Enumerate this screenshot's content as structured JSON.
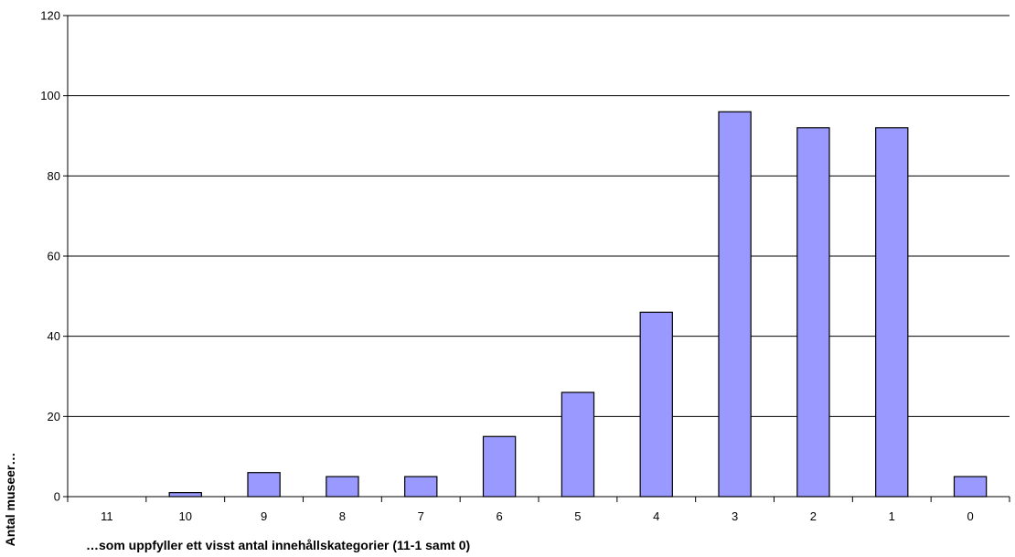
{
  "chart_data": {
    "type": "bar",
    "title": "",
    "xlabel": "…som uppfyller ett visst antal innehållskategorier (11-1 samt 0)",
    "ylabel": "Antal museer…",
    "categories": [
      "11",
      "10",
      "9",
      "8",
      "7",
      "6",
      "5",
      "4",
      "3",
      "2",
      "1",
      "0"
    ],
    "values": [
      0,
      1,
      6,
      5,
      5,
      15,
      26,
      46,
      96,
      92,
      92,
      5
    ],
    "ylim": [
      0,
      120
    ],
    "yticks": [
      0,
      20,
      40,
      60,
      80,
      100,
      120
    ],
    "grid": true,
    "legend": "none",
    "colors": {
      "bar_fill": "#9999ff",
      "bar_stroke": "#000000",
      "grid": "#000000"
    }
  }
}
